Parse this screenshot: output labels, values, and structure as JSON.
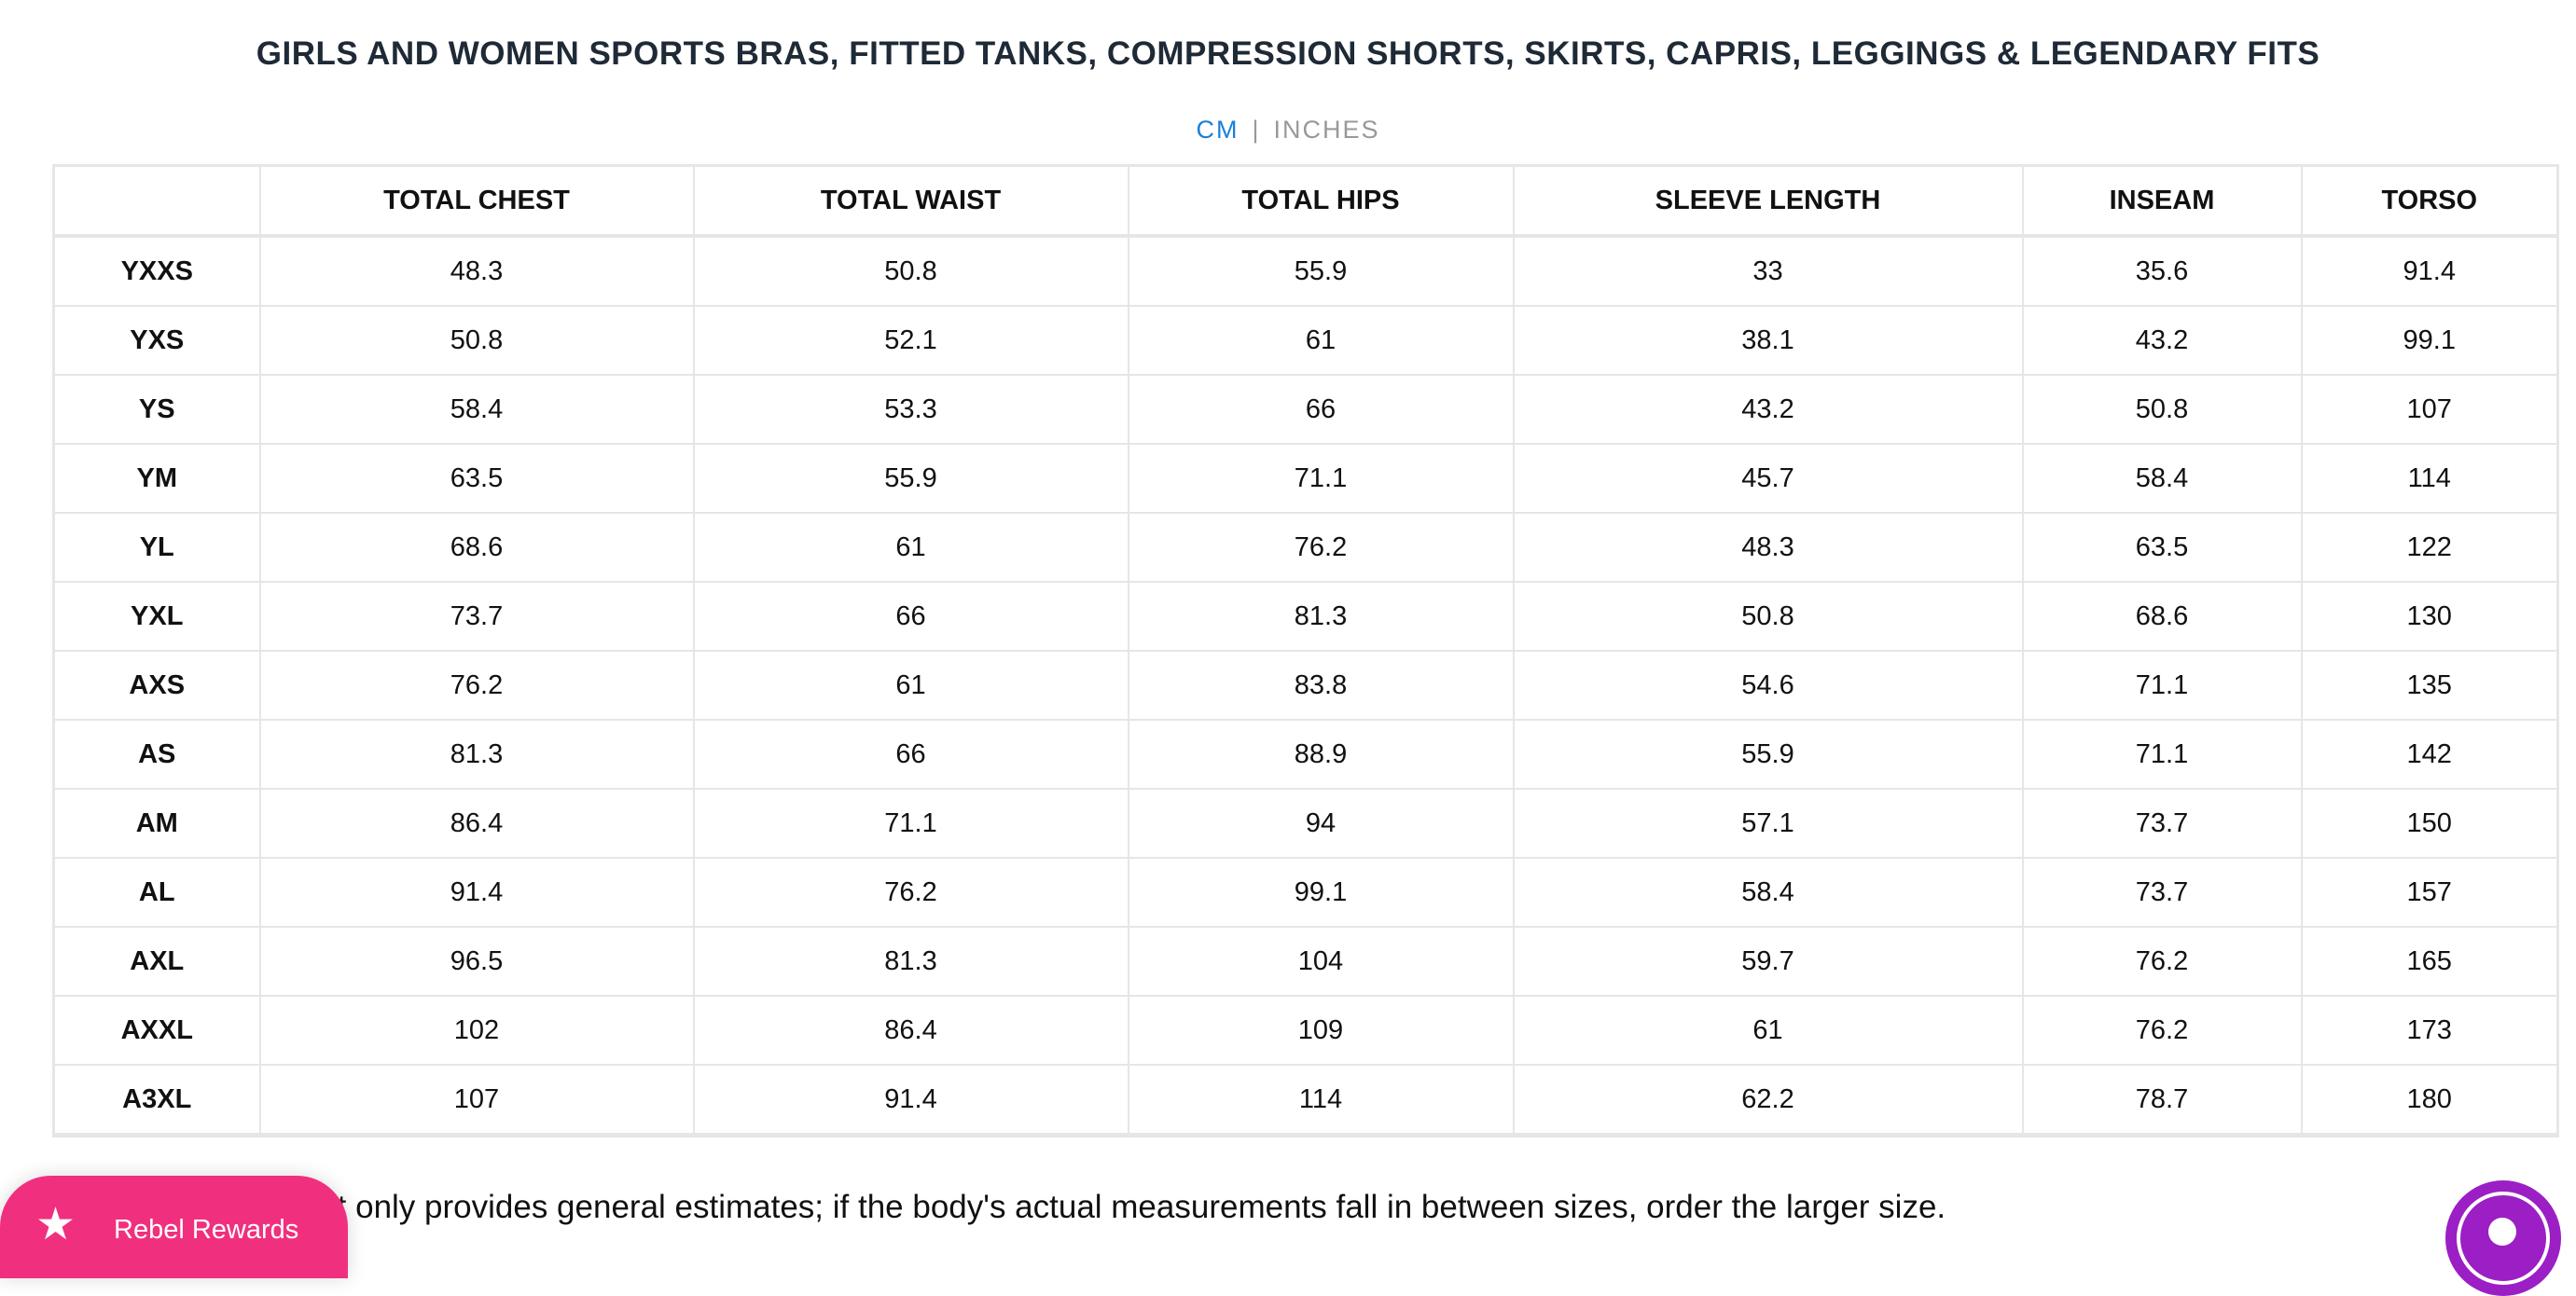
{
  "title": "GIRLS AND WOMEN SPORTS BRAS, FITTED TANKS, COMPRESSION SHORTS, SKIRTS, CAPRIS, LEGGINGS & LEGENDARY FITS",
  "units": {
    "cm": "CM",
    "separator": "|",
    "inches": "INCHES",
    "selected": "CM"
  },
  "table": {
    "headers": [
      "",
      "TOTAL CHEST",
      "TOTAL WAIST",
      "TOTAL HIPS",
      "SLEEVE LENGTH",
      "INSEAM",
      "TORSO"
    ],
    "rows": [
      [
        "YXXS",
        "48.3",
        "50.8",
        "55.9",
        "33",
        "35.6",
        "91.4"
      ],
      [
        "YXS",
        "50.8",
        "52.1",
        "61",
        "38.1",
        "43.2",
        "99.1"
      ],
      [
        "YS",
        "58.4",
        "53.3",
        "66",
        "43.2",
        "50.8",
        "107"
      ],
      [
        "YM",
        "63.5",
        "55.9",
        "71.1",
        "45.7",
        "58.4",
        "114"
      ],
      [
        "YL",
        "68.6",
        "61",
        "76.2",
        "48.3",
        "63.5",
        "122"
      ],
      [
        "YXL",
        "73.7",
        "66",
        "81.3",
        "50.8",
        "68.6",
        "130"
      ],
      [
        "AXS",
        "76.2",
        "61",
        "83.8",
        "54.6",
        "71.1",
        "135"
      ],
      [
        "AS",
        "81.3",
        "66",
        "88.9",
        "55.9",
        "71.1",
        "142"
      ],
      [
        "AM",
        "86.4",
        "71.1",
        "94",
        "57.1",
        "73.7",
        "150"
      ],
      [
        "AL",
        "91.4",
        "76.2",
        "99.1",
        "58.4",
        "73.7",
        "157"
      ],
      [
        "AXL",
        "96.5",
        "81.3",
        "104",
        "59.7",
        "76.2",
        "165"
      ],
      [
        "AXXL",
        "102",
        "86.4",
        "109",
        "61",
        "76.2",
        "173"
      ],
      [
        "A3XL",
        "107",
        "91.4",
        "114",
        "62.2",
        "78.7",
        "180"
      ]
    ]
  },
  "note": "rt only provides general estimates; if the body's actual measurements fall in between sizes, order the larger size.",
  "rewards_button": {
    "label": "Rebel Rewards",
    "icon": "star-icon",
    "color": "#f0307e"
  },
  "chat_button": {
    "icon": "chat-icon",
    "color": "#9b1fc4"
  }
}
